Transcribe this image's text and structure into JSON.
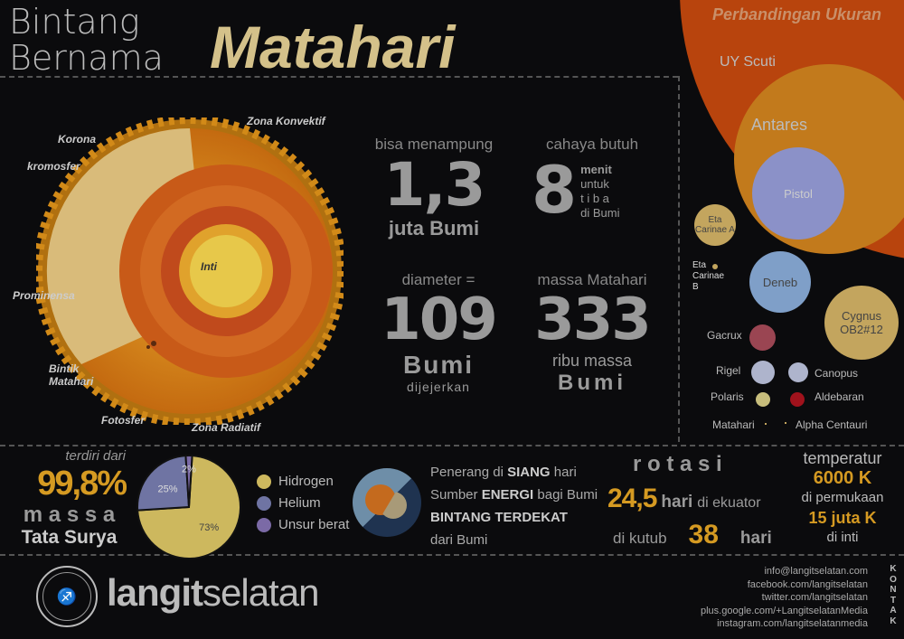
{
  "title": {
    "line1": "Bintang",
    "line2": "Bernama",
    "main": "Matahari"
  },
  "sun_diagram": {
    "labels": {
      "korona": "Korona",
      "kromosfer": "kromosfer",
      "prominensa": "Prominensa",
      "bintik": "Bintik Matahari",
      "fotosfer": "Fotosfer",
      "zona_radiatif": "Zona Radiatif",
      "zona_konvektif": "Zona Konvektif",
      "inti": "Inti"
    }
  },
  "facts": {
    "capacity": {
      "pre": "bisa menampung",
      "value": "1,3",
      "post": "juta Bumi"
    },
    "light": {
      "pre": "cahaya butuh",
      "value": "8",
      "unit_lines": [
        "menit",
        "untuk",
        "t i b a",
        "di Bumi"
      ]
    },
    "diameter": {
      "pre": "diameter =",
      "value": "109",
      "post": "Bumi",
      "post2": "dijejerkan"
    },
    "mass": {
      "pre": "massa Matahari",
      "value": "333",
      "post": "ribu massa",
      "post2": "Bumi"
    }
  },
  "comparison": {
    "title": "Perbandingan Ukuran",
    "colors": {
      "uy_scuti": "#b8440d",
      "antares": "#c27a1c",
      "pistol": "#8b91c8"
    },
    "stars": [
      "UY Scuti",
      "Antares",
      "Pistol",
      "Eta Carinae A",
      "Eta Carinae B",
      "Deneb",
      "Cygnus OB2#12",
      "Gacrux",
      "Rigel",
      "Canopus",
      "Polaris",
      "Aldebaran",
      "Matahari",
      "Alpha Centauri"
    ]
  },
  "mass_share": {
    "pre": "terdiri dari",
    "value": "99,8%",
    "word": "m a s s a",
    "post": "Tata Surya"
  },
  "chart_data": {
    "type": "pie",
    "categories": [
      "Hidrogen",
      "Helium",
      "Unsur berat"
    ],
    "values": [
      73,
      25,
      2
    ],
    "labels": [
      "73%",
      "25%",
      "2%"
    ],
    "colors": [
      "#cdb85e",
      "#6f74a3",
      "#7b6aa6"
    ],
    "legend": "right"
  },
  "role": {
    "line1": [
      "Penerang di ",
      "SIANG",
      " hari"
    ],
    "line2": [
      "Sumber ",
      "ENERGI",
      " bagi Bumi"
    ],
    "line3": "BINTANG TERDEKAT",
    "line4": "dari Bumi"
  },
  "rotation": {
    "title": "r o t a s i",
    "equator_value": "24,5",
    "equator_unit": "hari",
    "equator_label": "di ekuator",
    "pole_label": "di kutub",
    "pole_value": "38",
    "pole_unit": "hari"
  },
  "temperature": {
    "title": "temperatur",
    "surface_value": "6000 K",
    "surface_label": "di permukaan",
    "core_value": "15 juta K",
    "core_label": "di inti"
  },
  "footer": {
    "brand_bold": "langit",
    "brand_light": "selatan",
    "logo_text": "LANGITSELATAN · ASTRO 101",
    "contact_label": "KONTAK",
    "contacts": [
      "info@langitselatan.com",
      "facebook.com/langitselatan",
      "twitter.com/langitselatan",
      "plus.google.com/+LangitselatanMedia",
      "instagram.com/langitselatanmedia"
    ]
  }
}
